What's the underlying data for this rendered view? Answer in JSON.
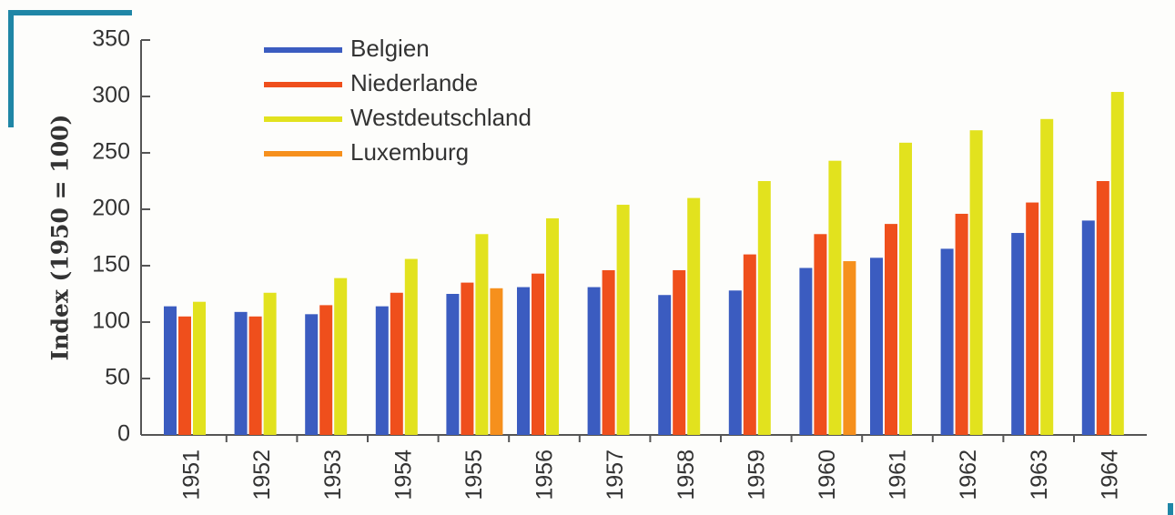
{
  "chart_data": {
    "type": "bar",
    "y_label": "Index (1950 = 100)",
    "categories": [
      "1951",
      "1952",
      "1953",
      "1954",
      "1955",
      "1956",
      "1957",
      "1958",
      "1959",
      "1960",
      "1961",
      "1962",
      "1963",
      "1964"
    ],
    "series": [
      {
        "name": "Belgien",
        "color": "#3b5cc0",
        "values": [
          114,
          109,
          107,
          114,
          125,
          131,
          131,
          124,
          128,
          148,
          157,
          165,
          179,
          190
        ]
      },
      {
        "name": "Niederlande",
        "color": "#ef4f1c",
        "values": [
          105,
          105,
          115,
          126,
          135,
          143,
          146,
          146,
          160,
          178,
          187,
          196,
          206,
          225
        ]
      },
      {
        "name": "Westdeutschland",
        "color": "#e2e21e",
        "values": [
          118,
          126,
          139,
          156,
          178,
          192,
          204,
          210,
          225,
          243,
          259,
          270,
          280,
          304
        ]
      },
      {
        "name": "Luxemburg",
        "color": "#f6901d",
        "values": [
          null,
          null,
          null,
          null,
          130,
          null,
          null,
          null,
          null,
          154,
          null,
          null,
          null,
          null
        ]
      }
    ],
    "ylim": [
      0,
      350
    ],
    "yticks": [
      0,
      50,
      100,
      150,
      200,
      250,
      300,
      350
    ]
  }
}
